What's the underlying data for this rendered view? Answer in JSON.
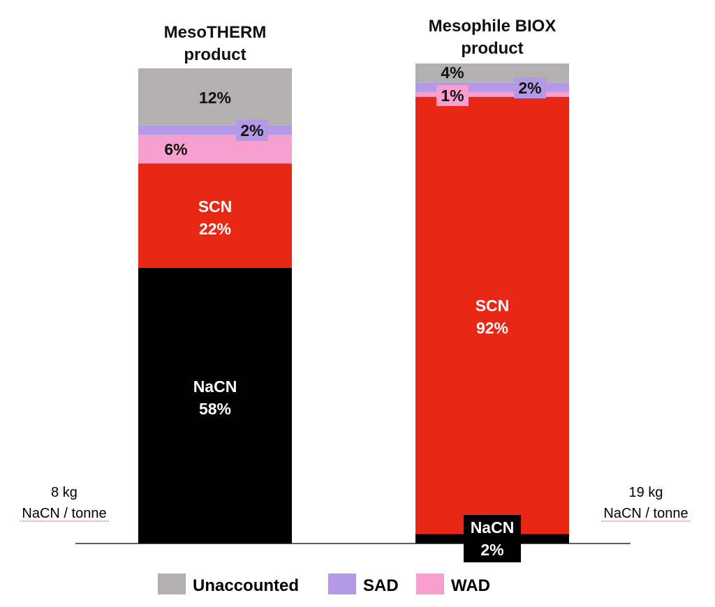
{
  "chart_data": {
    "type": "stacked-bar",
    "percent_axis": [
      0,
      100
    ],
    "bars": [
      {
        "title": [
          "MesoTHERM",
          "product"
        ],
        "note": [
          "8 kg",
          "NaCN / tonne"
        ],
        "segments": [
          {
            "series": "NaCN",
            "label": [
              "NaCN",
              "58%"
            ],
            "value": 58,
            "color": "#000000"
          },
          {
            "series": "SCN",
            "label": [
              "SCN",
              "22%"
            ],
            "value": 22,
            "color": "#e82815"
          },
          {
            "series": "WAD",
            "label": [
              "6%"
            ],
            "value": 6,
            "color": "#f79fcf"
          },
          {
            "series": "SAD",
            "label": [
              "2%"
            ],
            "value": 2,
            "color": "#b49ae6"
          },
          {
            "series": "Unaccounted",
            "label": [
              "12%"
            ],
            "value": 12,
            "color": "#b2b0b0"
          }
        ]
      },
      {
        "title": [
          "Mesophile BIOX",
          "product"
        ],
        "note": [
          "19 kg",
          "NaCN / tonne"
        ],
        "segments": [
          {
            "series": "NaCN",
            "label": [
              "NaCN",
              "2%"
            ],
            "value": 2,
            "color": "#000000"
          },
          {
            "series": "SCN",
            "label": [
              "SCN",
              "92%"
            ],
            "value": 92,
            "color": "#e82815"
          },
          {
            "series": "WAD",
            "label": [
              "1%"
            ],
            "value": 1,
            "color": "#f79fcf"
          },
          {
            "series": "SAD",
            "label": [
              "2%"
            ],
            "value": 2,
            "color": "#b49ae6"
          },
          {
            "series": "Unaccounted",
            "label": [
              "4%"
            ],
            "value": 4,
            "color": "#b2b0b0"
          }
        ]
      }
    ],
    "legend": [
      {
        "name": "Unaccounted",
        "color": "#b2b0b0"
      },
      {
        "name": "SAD",
        "color": "#b49ae6"
      },
      {
        "name": "WAD",
        "color": "#f79fcf"
      }
    ],
    "legend_position": "bottom"
  }
}
